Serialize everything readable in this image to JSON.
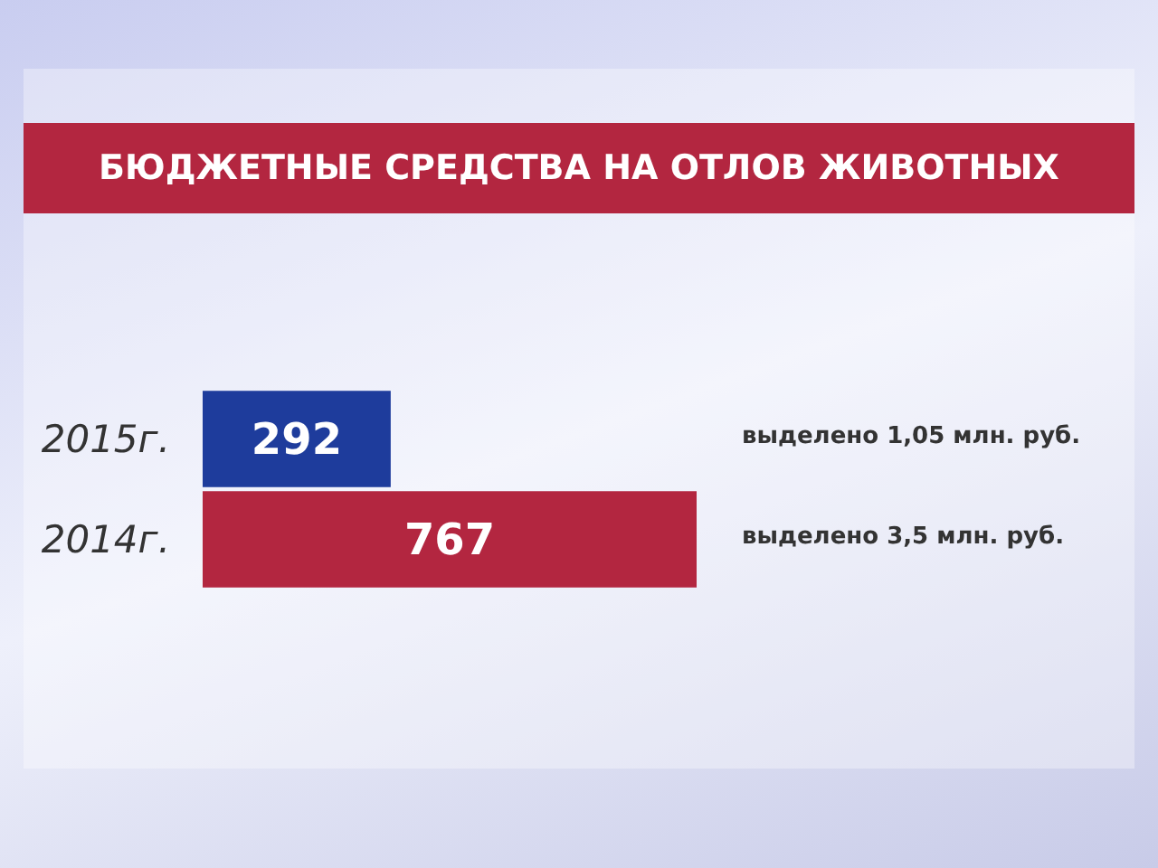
{
  "chart_data": {
    "type": "bar",
    "orientation": "horizontal",
    "title": "БЮДЖЕТНЫЕ СРЕДСТВА НА ОТЛОВ ЖИВОТНЫХ",
    "categories": [
      "2015г.",
      "2014г."
    ],
    "values": [
      292,
      767
    ],
    "colors": [
      "#1e3c9c",
      "#b32640"
    ],
    "data_labels": true,
    "annotations": [
      "выделено 1,05 млн. руб.",
      "выделено 3,5 млн. руб."
    ]
  }
}
